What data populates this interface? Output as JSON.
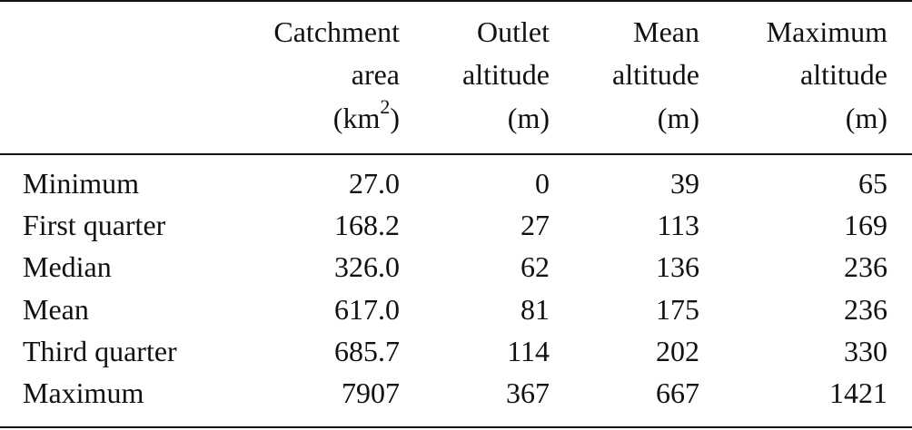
{
  "table": {
    "columns": [
      {
        "lines": [
          "Catchment",
          "area"
        ],
        "unit": [
          "(km",
          "2",
          ")"
        ]
      },
      {
        "lines": [
          "Outlet",
          "altitude"
        ],
        "unit": [
          "(m)"
        ]
      },
      {
        "lines": [
          "Mean",
          "altitude"
        ],
        "unit": [
          "(m)"
        ]
      },
      {
        "lines": [
          "Maximum",
          "altitude"
        ],
        "unit": [
          "(m)"
        ]
      }
    ],
    "rows": [
      [
        "Minimum",
        "27.0",
        "0",
        "39",
        "65"
      ],
      [
        "First quarter",
        "168.2",
        "27",
        "113",
        "169"
      ],
      [
        "Median",
        "326.0",
        "62",
        "136",
        "236"
      ],
      [
        "Mean",
        "617.0",
        "81",
        "175",
        "236"
      ],
      [
        "Third quarter",
        "685.7",
        "114",
        "202",
        "330"
      ],
      [
        "Maximum",
        "7907",
        "367",
        "667",
        "1421"
      ]
    ]
  }
}
